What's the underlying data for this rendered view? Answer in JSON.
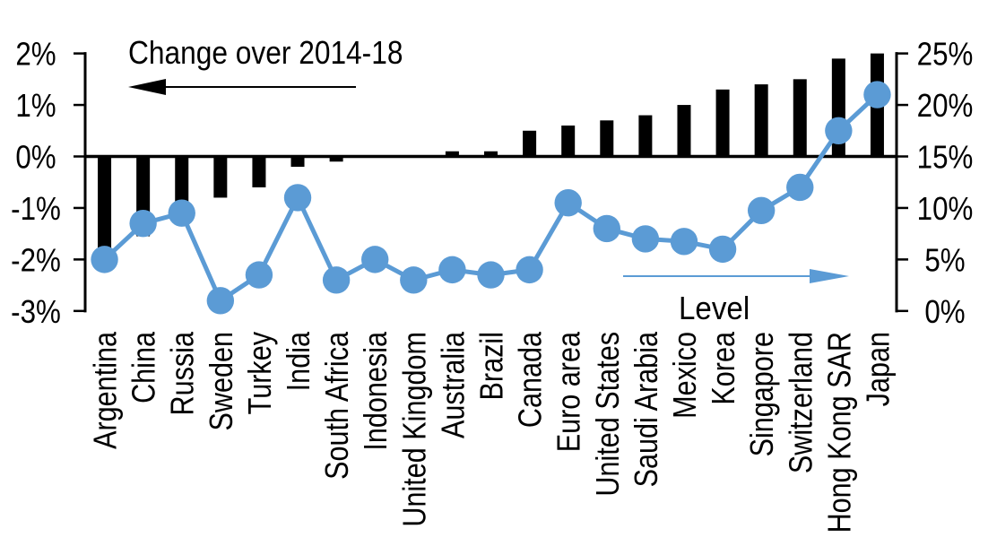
{
  "chart_data": {
    "type": "bar",
    "subtype": "dual-axis combo: bars (left axis) + line with markers (right axis)",
    "categories": [
      "Argentina",
      "China",
      "Russia",
      "Sweden",
      "Turkey",
      "India",
      "South Africa",
      "Indonesia",
      "United Kingdom",
      "Australia",
      "Brazil",
      "Canada",
      "Euro area",
      "United States",
      "Saudi Arabia",
      "Mexico",
      "Korea",
      "Singapore",
      "Switzerland",
      "Hong Kong SAR",
      "Japan"
    ],
    "series": [
      {
        "name": "Change over 2014-18",
        "type": "bar",
        "axis": "left",
        "color": "#000000",
        "values": [
          -1.8,
          -1.55,
          -1.3,
          -0.8,
          -0.6,
          -0.2,
          -0.1,
          0,
          0,
          0.1,
          0.1,
          0.5,
          0.6,
          0.7,
          0.8,
          1.0,
          1.3,
          1.4,
          1.5,
          1.9,
          2.0
        ]
      },
      {
        "name": "Level",
        "type": "line",
        "axis": "right",
        "color": "#5B9BD5",
        "values": [
          5,
          8.5,
          9.5,
          1,
          3.5,
          11,
          3,
          5,
          3,
          4,
          3.5,
          4,
          10.5,
          8,
          7,
          6.75,
          6,
          9.75,
          12,
          17.5,
          21
        ]
      }
    ],
    "left_axis": {
      "unit": "%",
      "min": -3,
      "max": 2,
      "ticks": [
        "2%",
        "1%",
        "0%",
        "-1%",
        "-2%",
        "-3%"
      ],
      "tick_values": [
        2,
        1,
        0,
        -1,
        -2,
        -3
      ]
    },
    "right_axis": {
      "unit": "%",
      "min": 0,
      "max": 25,
      "ticks": [
        "25%",
        "20%",
        "15%",
        "10%",
        "5%",
        "0%"
      ],
      "tick_values": [
        25,
        20,
        15,
        10,
        5,
        0
      ]
    },
    "annotations": {
      "left_arrow_label": "Change over 2014-18",
      "right_arrow_label": "Level"
    },
    "grid": false,
    "legend_position": "arrows pointing toward the axis each series is read on"
  },
  "colors": {
    "bar": "#000000",
    "line": "#5B9BD5",
    "text": "#000000",
    "background": "#FFFFFF"
  }
}
